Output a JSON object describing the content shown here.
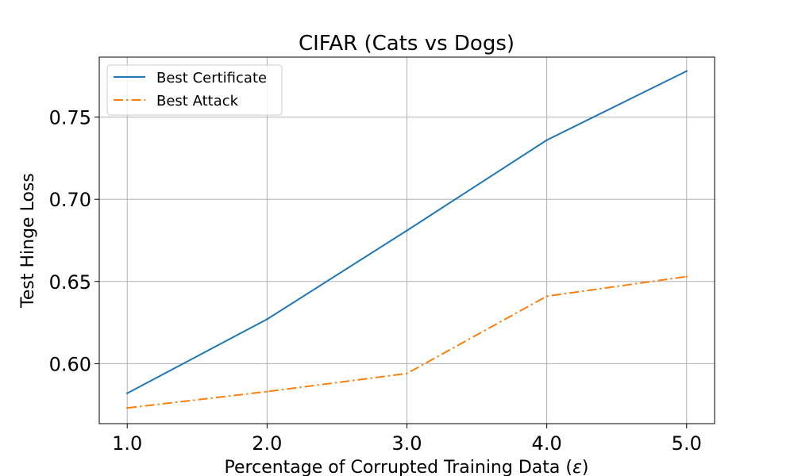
{
  "chart_data": {
    "type": "line",
    "title": "CIFAR (Cats vs Dogs)",
    "xlabel": "Percentage of Corrupted Training Data (",
    "xlabel_symbol": "ε",
    "xlabel_suffix": ")",
    "ylabel": "Test Hinge Loss",
    "x": [
      1.0,
      2.0,
      3.0,
      4.0,
      5.0
    ],
    "xticks": [
      "1.0",
      "2.0",
      "3.0",
      "4.0",
      "5.0"
    ],
    "yticks": [
      0.6,
      0.65,
      0.7,
      0.75
    ],
    "ytick_labels": [
      "0.60",
      "0.65",
      "0.70",
      "0.75"
    ],
    "xlim": [
      0.8,
      5.2
    ],
    "ylim": [
      0.5635,
      0.7865
    ],
    "grid": true,
    "legend_position": "upper-left",
    "series": [
      {
        "name": "Best Certificate",
        "color": "#1f77b4",
        "style": "solid",
        "values": [
          0.582,
          0.627,
          0.681,
          0.736,
          0.778
        ]
      },
      {
        "name": "Best Attack",
        "color": "#ff7f0e",
        "style": "dashdot",
        "values": [
          0.573,
          0.583,
          0.594,
          0.641,
          0.653
        ]
      }
    ]
  }
}
